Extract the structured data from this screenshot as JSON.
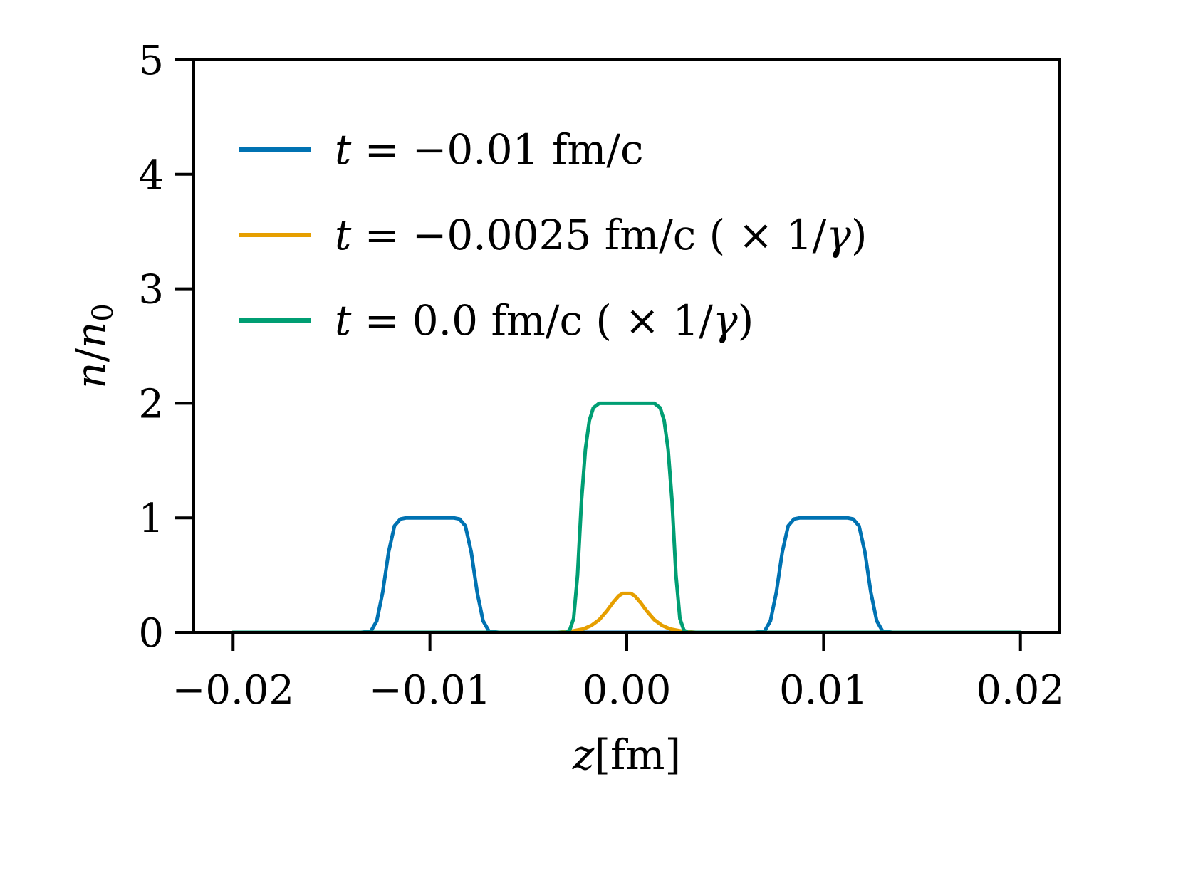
{
  "chart_data": {
    "type": "line",
    "xlabel": {
      "var": "z",
      "unit": "[fm]"
    },
    "ylabel": {
      "num": "n",
      "den": "n",
      "den_sub": "0"
    },
    "xlim": [
      -0.022,
      0.022
    ],
    "ylim": [
      0,
      5
    ],
    "xticks": [
      -0.02,
      -0.01,
      0.0,
      0.01,
      0.02
    ],
    "xtick_labels": [
      "−0.02",
      "−0.01",
      "0.00",
      "0.01",
      "0.02"
    ],
    "yticks": [
      0,
      1,
      2,
      3,
      4,
      5
    ],
    "ytick_labels": [
      "0",
      "1",
      "2",
      "3",
      "4",
      "5"
    ],
    "legend_position": "upper-left",
    "grid": false,
    "series": [
      {
        "name": "t = −0.01 fm/c",
        "legend": {
          "var": "t",
          "rest": " = −0.01 fm/c"
        },
        "color": "#0072b2",
        "points": [
          [
            -0.02,
            0.0
          ],
          [
            -0.0135,
            0.0
          ],
          [
            -0.013,
            0.01
          ],
          [
            -0.0127,
            0.1
          ],
          [
            -0.0124,
            0.35
          ],
          [
            -0.0121,
            0.7
          ],
          [
            -0.0118,
            0.93
          ],
          [
            -0.0115,
            0.99
          ],
          [
            -0.0112,
            1.0
          ],
          [
            -0.0088,
            1.0
          ],
          [
            -0.0085,
            0.99
          ],
          [
            -0.0082,
            0.93
          ],
          [
            -0.0079,
            0.7
          ],
          [
            -0.0076,
            0.35
          ],
          [
            -0.0073,
            0.1
          ],
          [
            -0.007,
            0.01
          ],
          [
            -0.0065,
            0.0
          ],
          [
            0.0065,
            0.0
          ],
          [
            0.007,
            0.01
          ],
          [
            0.0073,
            0.1
          ],
          [
            0.0076,
            0.35
          ],
          [
            0.0079,
            0.7
          ],
          [
            0.0082,
            0.93
          ],
          [
            0.0085,
            0.99
          ],
          [
            0.0088,
            1.0
          ],
          [
            0.0112,
            1.0
          ],
          [
            0.0115,
            0.99
          ],
          [
            0.0118,
            0.93
          ],
          [
            0.0121,
            0.7
          ],
          [
            0.0124,
            0.35
          ],
          [
            0.0127,
            0.1
          ],
          [
            0.013,
            0.01
          ],
          [
            0.0135,
            0.0
          ],
          [
            0.02,
            0.0
          ]
        ]
      },
      {
        "name": "t = −0.0025 fm/c ( × 1/γ)",
        "legend": {
          "var": "t",
          "rest": " = −0.0025 fm/c ( × 1/",
          "gamma": "γ",
          "close": ")"
        },
        "color": "#e69f00",
        "points": [
          [
            -0.02,
            0.0
          ],
          [
            -0.0035,
            0.0
          ],
          [
            -0.0028,
            0.01
          ],
          [
            -0.0022,
            0.03
          ],
          [
            -0.0018,
            0.06
          ],
          [
            -0.0014,
            0.11
          ],
          [
            -0.001,
            0.19
          ],
          [
            -0.0007,
            0.26
          ],
          [
            -0.0004,
            0.32
          ],
          [
            -0.0002,
            0.34
          ],
          [
            0.0002,
            0.34
          ],
          [
            0.0004,
            0.32
          ],
          [
            0.0007,
            0.26
          ],
          [
            0.001,
            0.19
          ],
          [
            0.0014,
            0.11
          ],
          [
            0.0018,
            0.06
          ],
          [
            0.0022,
            0.03
          ],
          [
            0.0028,
            0.01
          ],
          [
            0.0035,
            0.0
          ],
          [
            0.02,
            0.0
          ]
        ]
      },
      {
        "name": "t = 0.0 fm/c ( × 1/γ)",
        "legend": {
          "var": "t",
          "rest": " = 0.0 fm/c ( × 1/",
          "gamma": "γ",
          "close": ")"
        },
        "color": "#009e73",
        "points": [
          [
            -0.02,
            0.0
          ],
          [
            -0.0031,
            0.0
          ],
          [
            -0.0029,
            0.02
          ],
          [
            -0.0027,
            0.12
          ],
          [
            -0.0025,
            0.5
          ],
          [
            -0.0023,
            1.15
          ],
          [
            -0.0021,
            1.6
          ],
          [
            -0.0019,
            1.85
          ],
          [
            -0.0017,
            1.96
          ],
          [
            -0.0014,
            2.0
          ],
          [
            0.0014,
            2.0
          ],
          [
            0.0017,
            1.96
          ],
          [
            0.0019,
            1.85
          ],
          [
            0.0021,
            1.6
          ],
          [
            0.0023,
            1.15
          ],
          [
            0.0025,
            0.5
          ],
          [
            0.0027,
            0.12
          ],
          [
            0.0029,
            0.02
          ],
          [
            0.0031,
            0.0
          ],
          [
            0.02,
            0.0
          ]
        ]
      }
    ]
  }
}
